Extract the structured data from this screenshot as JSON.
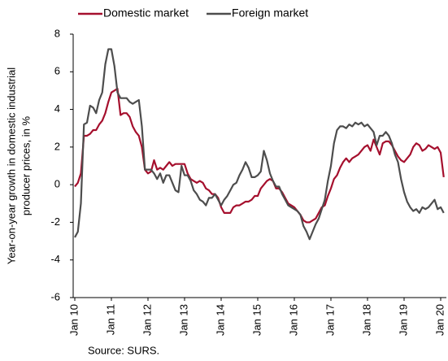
{
  "chart_data": {
    "type": "line",
    "ylabel": [
      "Year-on-year growth in domestic industrial",
      "producer prices, in %"
    ],
    "source": "Source: SURS.",
    "categories": [
      "Jan 10",
      null,
      null,
      null,
      null,
      null,
      null,
      null,
      null,
      null,
      null,
      null,
      "Jan 11",
      null,
      null,
      null,
      null,
      null,
      null,
      null,
      null,
      null,
      null,
      null,
      "Jan 12",
      null,
      null,
      null,
      null,
      null,
      null,
      null,
      null,
      null,
      null,
      null,
      "Jan 13",
      null,
      null,
      null,
      null,
      null,
      null,
      null,
      null,
      null,
      null,
      null,
      "Jan 14",
      null,
      null,
      null,
      null,
      null,
      null,
      null,
      null,
      null,
      null,
      null,
      "Jan 15",
      null,
      null,
      null,
      null,
      null,
      null,
      null,
      null,
      null,
      null,
      null,
      "Jan 16",
      null,
      null,
      null,
      null,
      null,
      null,
      null,
      null,
      null,
      null,
      null,
      "Jan 17",
      null,
      null,
      null,
      null,
      null,
      null,
      null,
      null,
      null,
      null,
      null,
      "Jan 18",
      null,
      null,
      null,
      null,
      null,
      null,
      null,
      null,
      null,
      null,
      null,
      "Jan 19",
      null,
      null,
      null,
      null,
      null,
      null,
      null,
      null,
      null,
      null,
      null,
      "Jan 20",
      null
    ],
    "series": [
      {
        "name": "Domestic market",
        "color": "#a50f2d",
        "values": [
          -0.1,
          0.1,
          0.6,
          2.6,
          2.6,
          2.7,
          2.9,
          2.9,
          3.2,
          3.4,
          3.8,
          4.4,
          4.9,
          5.0,
          5.1,
          3.7,
          3.8,
          3.8,
          3.6,
          3.1,
          2.8,
          2.6,
          2.0,
          0.8,
          0.6,
          0.7,
          1.3,
          0.8,
          0.9,
          0.8,
          1.0,
          1.2,
          1.0,
          1.1,
          1.1,
          1.1,
          1.1,
          0.6,
          0.3,
          0.2,
          0.1,
          0.2,
          0.1,
          -0.2,
          -0.3,
          -0.5,
          -0.5,
          -0.7,
          -1.2,
          -1.5,
          -1.5,
          -1.5,
          -1.2,
          -1.1,
          -1.1,
          -1.0,
          -0.9,
          -0.9,
          -0.8,
          -0.6,
          -0.6,
          -0.2,
          0.0,
          0.2,
          0.3,
          0.2,
          -0.2,
          -0.2,
          -0.4,
          -0.7,
          -1.0,
          -1.1,
          -1.2,
          -1.4,
          -1.6,
          -1.9,
          -2.0,
          -2.0,
          -1.9,
          -1.8,
          -1.5,
          -1.2,
          -1.1,
          -0.6,
          -0.2,
          0.3,
          0.5,
          0.9,
          1.2,
          1.4,
          1.2,
          1.4,
          1.5,
          1.6,
          1.8,
          2.0,
          2.1,
          1.8,
          2.4,
          2.0,
          1.6,
          2.2,
          2.3,
          2.3,
          2.1,
          1.8,
          1.5,
          1.3,
          1.2,
          1.4,
          1.6,
          2.0,
          2.2,
          2.1,
          1.8,
          1.9,
          2.1,
          2.0,
          1.9,
          2.0,
          1.7,
          0.4
        ]
      },
      {
        "name": "Foreign market",
        "color": "#4d4d4d",
        "values": [
          -2.8,
          -2.5,
          -1.0,
          3.2,
          3.3,
          4.2,
          4.1,
          3.8,
          4.5,
          4.9,
          6.4,
          7.2,
          7.2,
          6.3,
          4.9,
          4.6,
          4.6,
          4.6,
          4.4,
          4.3,
          4.4,
          4.5,
          3.1,
          0.8,
          0.8,
          0.8,
          0.6,
          0.3,
          0.6,
          0.1,
          0.5,
          0.5,
          0.1,
          -0.3,
          -0.4,
          1.0,
          0.5,
          0.5,
          0.2,
          -0.3,
          -0.5,
          -0.8,
          -0.9,
          -1.1,
          -0.7,
          -0.7,
          -0.5,
          -0.8,
          -1.1,
          -0.8,
          -0.6,
          -0.3,
          0.0,
          0.1,
          0.5,
          0.8,
          1.2,
          0.9,
          0.4,
          0.4,
          0.5,
          0.7,
          1.8,
          1.3,
          0.6,
          0.2,
          -0.1,
          -0.1,
          -0.5,
          -0.8,
          -1.1,
          -1.2,
          -1.3,
          -1.4,
          -1.6,
          -2.2,
          -2.5,
          -2.9,
          -2.5,
          -2.1,
          -1.8,
          -1.3,
          -0.8,
          0.2,
          1.0,
          2.2,
          2.9,
          3.1,
          3.1,
          3.0,
          3.2,
          3.1,
          3.3,
          3.2,
          3.3,
          3.1,
          3.2,
          3.0,
          2.8,
          2.1,
          2.6,
          2.6,
          2.8,
          2.6,
          2.2,
          1.6,
          1.2,
          0.3,
          -0.4,
          -0.9,
          -1.2,
          -1.4,
          -1.3,
          -1.5,
          -1.2,
          -1.3,
          -1.2,
          -1.0,
          -0.8,
          -1.3,
          -1.2,
          -1.5
        ]
      }
    ],
    "ylim": [
      -6,
      8
    ],
    "yticks": [
      -6,
      -4,
      -2,
      0,
      2,
      4,
      6,
      8
    ],
    "grid": false
  }
}
